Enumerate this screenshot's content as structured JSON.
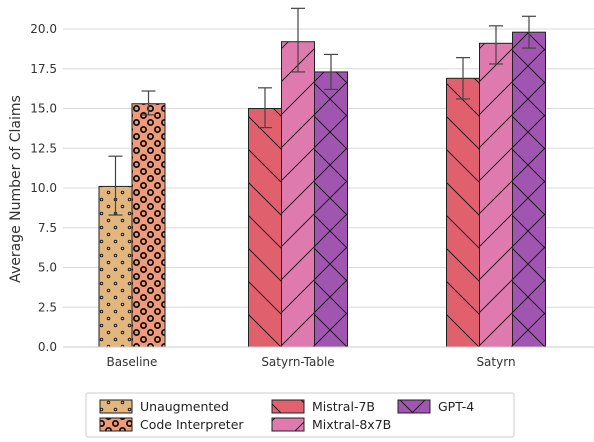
{
  "chart_data": {
    "type": "bar",
    "ylabel": "Average Number of Claims",
    "ylim": [
      0,
      21.5
    ],
    "yticks": [
      "0.0",
      "2.5",
      "5.0",
      "7.5",
      "10.0",
      "12.5",
      "15.0",
      "17.5",
      "20.0"
    ],
    "grid": "horizontal",
    "legend_position": "bottom",
    "groups": [
      {
        "label": "Baseline",
        "bars": [
          {
            "series": "Unaugmented",
            "value": 10.1,
            "err_low": 8.3,
            "err_high": 12.0
          },
          {
            "series": "Code Interpreter",
            "value": 15.3,
            "err_low": 14.6,
            "err_high": 16.1
          }
        ]
      },
      {
        "label": "Satyrn-Table",
        "bars": [
          {
            "series": "Mistral-7B",
            "value": 15.0,
            "err_low": 13.8,
            "err_high": 16.3
          },
          {
            "series": "Mixtral-8x7B",
            "value": 19.2,
            "err_low": 17.3,
            "err_high": 21.3
          },
          {
            "series": "GPT-4",
            "value": 17.3,
            "err_low": 16.2,
            "err_high": 18.4
          }
        ]
      },
      {
        "label": "Satyrn",
        "bars": [
          {
            "series": "Mistral-7B",
            "value": 16.9,
            "err_low": 15.6,
            "err_high": 18.2
          },
          {
            "series": "Mixtral-8x7B",
            "value": 19.1,
            "err_low": 17.8,
            "err_high": 20.2
          },
          {
            "series": "GPT-4",
            "value": 19.8,
            "err_low": 18.8,
            "err_high": 20.8
          }
        ]
      }
    ],
    "series": [
      {
        "name": "Unaugmented",
        "color": "#e2b77f",
        "hatch": "dots"
      },
      {
        "name": "Code Interpreter",
        "color": "#ef9b7b",
        "hatch": "circles"
      },
      {
        "name": "Mistral-7B",
        "color": "#e0606e",
        "hatch": "backslash"
      },
      {
        "name": "Mixtral-8x7B",
        "color": "#de7aae",
        "hatch": "slash"
      },
      {
        "name": "GPT-4",
        "color": "#a055b0",
        "hatch": "crosshatch"
      }
    ]
  }
}
